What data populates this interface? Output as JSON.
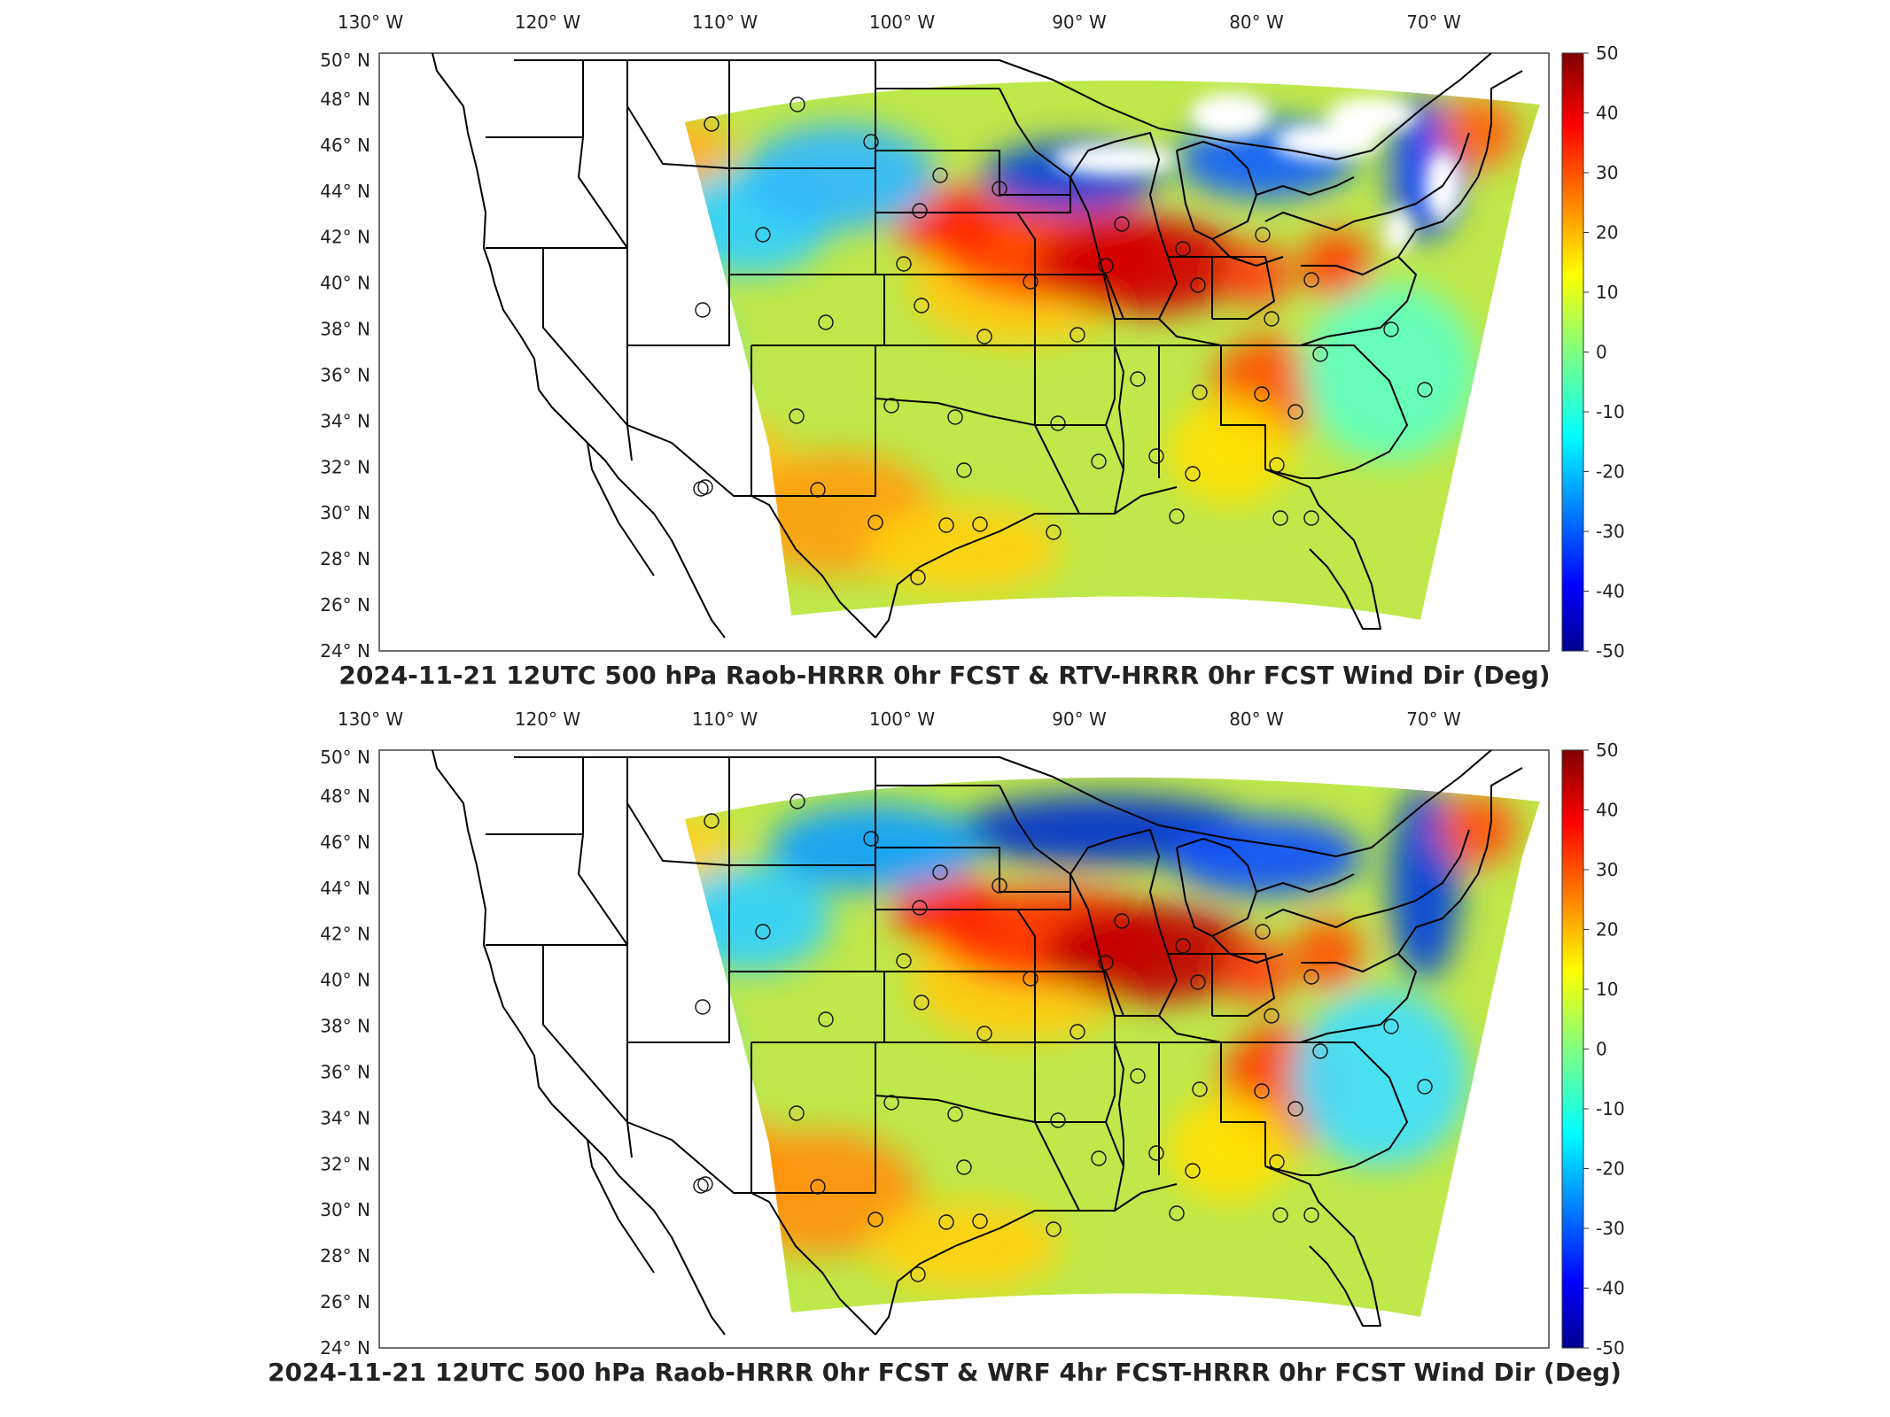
{
  "figure": {
    "panels": [
      {
        "title": "2024-11-21 12UTC 500 hPa Raob-HRRR 0hr FCST & RTV-HRRR 0hr FCST Wind Dir (Deg)",
        "variant": "rtv"
      },
      {
        "title": "2024-11-21 12UTC 500 hPa Raob-HRRR 0hr FCST & WRF 4hr FCST-HRRR 0hr FCST Wind Dir (Deg)",
        "variant": "wrf"
      }
    ],
    "lon_labels": [
      "130° W",
      "120° W",
      "110° W",
      "100° W",
      "90° W",
      "80° W",
      "70° W"
    ],
    "lat_labels": [
      "50° N",
      "48° N",
      "46° N",
      "44° N",
      "42° N",
      "40° N",
      "38° N",
      "36° N",
      "34° N",
      "32° N",
      "30° N",
      "28° N",
      "26° N",
      "24° N"
    ],
    "colorbar": {
      "ticks": [
        "50",
        "40",
        "30",
        "20",
        "10",
        "0",
        "-10",
        "-20",
        "-30",
        "-40",
        "-50"
      ],
      "range": [
        -50,
        50
      ],
      "colormap": "jet"
    },
    "colors": {
      "deep_blue": "#00008f",
      "blue": "#0050ff",
      "cyan": "#00d0ff",
      "green": "#80ff80",
      "yellow": "#ffe000",
      "orange": "#ff8000",
      "red": "#e00000",
      "dark_red": "#800000",
      "background_field": "#bfe84a"
    }
  }
}
